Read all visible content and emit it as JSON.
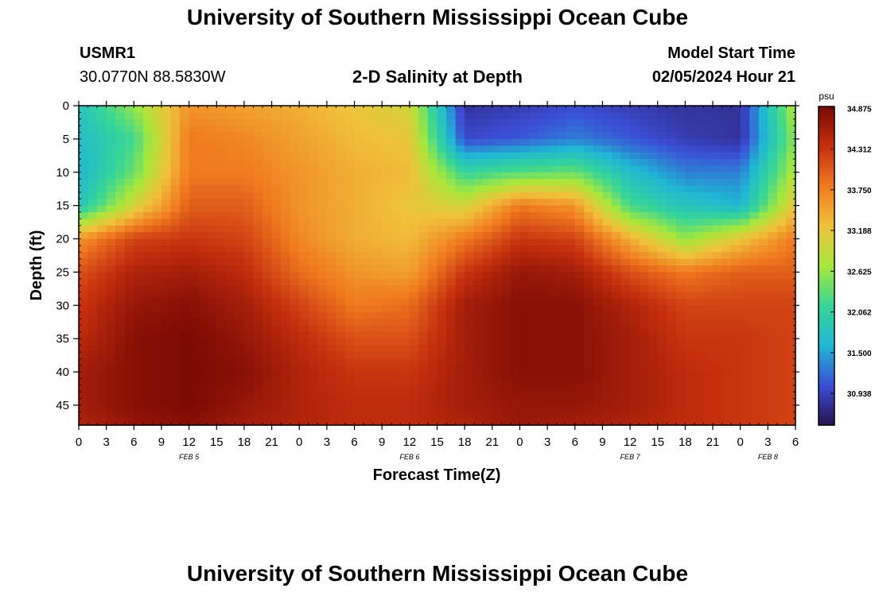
{
  "header": {
    "title": "University of Southern Mississippi Ocean Cube",
    "station_id": "USMR1",
    "coordinates": "30.0770N  88.5830W",
    "plot_title": "2-D Salinity at Depth",
    "model_start_label": "Model Start Time",
    "model_start_value": "02/05/2024 Hour 21"
  },
  "footer": {
    "title": "University of Southern Mississippi Ocean Cube"
  },
  "colors": {
    "scale": [
      "#2a1150",
      "#3b4fd6",
      "#1fb8d3",
      "#37d696",
      "#a7e83a",
      "#f0c23a",
      "#f07a20",
      "#c52e0e",
      "#7a0a04"
    ]
  },
  "chart_data": {
    "type": "heatmap",
    "ylabel": "Depth (ft)",
    "xlabel": "Forecast Time(Z)",
    "ylim": [
      0,
      48
    ],
    "yticks": [
      0,
      5,
      10,
      15,
      20,
      25,
      30,
      35,
      40,
      45
    ],
    "xlim_hours": [
      0,
      78
    ],
    "xtick_labels": [
      "0",
      "3",
      "6",
      "9",
      "12",
      "15",
      "18",
      "21",
      "0",
      "3",
      "6",
      "9",
      "12",
      "15",
      "18",
      "21",
      "0",
      "3",
      "6",
      "9",
      "12",
      "15",
      "18",
      "21",
      "0",
      "3",
      "6"
    ],
    "day_labels": [
      {
        "label": "FEB 5",
        "hour": 12
      },
      {
        "label": "FEB 6",
        "hour": 36
      },
      {
        "label": "FEB 7",
        "hour": 60
      },
      {
        "label": "FEB 8",
        "hour": 75
      }
    ],
    "colorbar": {
      "unit": "psu",
      "min": 30.5,
      "max": 34.9,
      "tick_labels": [
        "34.875",
        "34.312",
        "33.750",
        "33.188",
        "32.625",
        "32.062",
        "31.500",
        "30.938"
      ]
    },
    "grid_depths": [
      0,
      5,
      10,
      15,
      20,
      25,
      30,
      35,
      40,
      45,
      48
    ],
    "grid_hours": [
      0,
      6,
      12,
      18,
      24,
      30,
      36,
      42,
      48,
      54,
      60,
      66,
      72,
      78
    ],
    "values": [
      [
        31.8,
        32.6,
        33.6,
        33.5,
        33.4,
        33.2,
        33.0,
        30.8,
        30.9,
        31.0,
        30.9,
        30.8,
        30.8,
        32.8
      ],
      [
        31.7,
        32.2,
        33.8,
        33.7,
        33.5,
        33.3,
        33.2,
        31.0,
        31.1,
        31.3,
        31.1,
        30.9,
        30.8,
        32.6
      ],
      [
        31.6,
        32.4,
        33.8,
        33.8,
        33.6,
        33.4,
        33.3,
        32.1,
        32.3,
        32.4,
        31.7,
        31.3,
        31.3,
        32.8
      ],
      [
        31.8,
        33.0,
        34.0,
        34.0,
        33.6,
        33.4,
        33.2,
        33.0,
        33.8,
        33.6,
        32.2,
        31.8,
        31.6,
        33.2
      ],
      [
        33.6,
        34.2,
        34.3,
        34.2,
        33.7,
        33.4,
        33.3,
        33.8,
        34.3,
        34.2,
        33.4,
        32.6,
        33.2,
        33.8
      ],
      [
        34.1,
        34.5,
        34.6,
        34.4,
        33.9,
        33.6,
        33.5,
        34.3,
        34.7,
        34.6,
        34.1,
        33.8,
        34.0,
        34.0
      ],
      [
        34.3,
        34.7,
        34.8,
        34.6,
        34.2,
        33.8,
        33.9,
        34.6,
        34.8,
        34.8,
        34.5,
        34.2,
        34.2,
        34.2
      ],
      [
        34.4,
        34.8,
        34.9,
        34.7,
        34.4,
        34.1,
        34.1,
        34.6,
        34.8,
        34.8,
        34.6,
        34.3,
        34.3,
        34.2
      ],
      [
        34.6,
        34.8,
        34.9,
        34.8,
        34.5,
        34.3,
        34.3,
        34.6,
        34.8,
        34.8,
        34.6,
        34.4,
        34.3,
        34.2
      ],
      [
        34.6,
        34.8,
        34.9,
        34.7,
        34.5,
        34.4,
        34.4,
        34.6,
        34.7,
        34.7,
        34.6,
        34.4,
        34.3,
        34.2
      ],
      [
        34.5,
        34.7,
        34.8,
        34.6,
        34.5,
        34.4,
        34.4,
        34.5,
        34.7,
        34.6,
        34.5,
        34.4,
        34.3,
        34.2
      ]
    ]
  }
}
